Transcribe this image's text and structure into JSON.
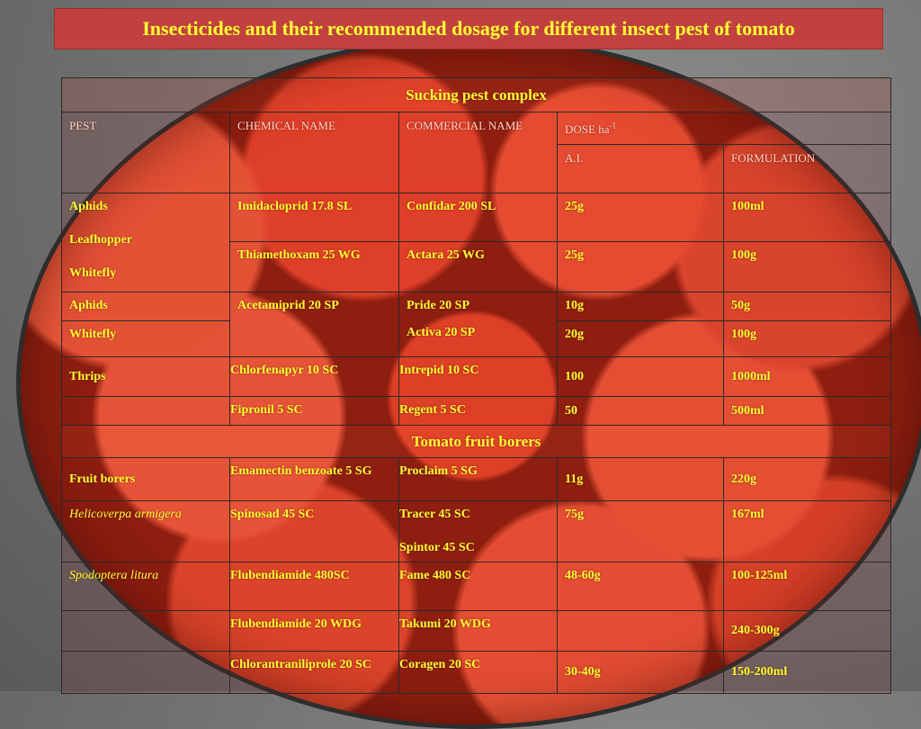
{
  "title": "Insecticides and their recommended dosage for different insect pest of tomato",
  "sections": {
    "sucking": "Sucking pest complex",
    "borers": "Tomato fruit borers"
  },
  "headers": {
    "pest": "PEST",
    "chemical": "CHEMICAL NAME",
    "commercial": "COMMERCIAL NAME",
    "dose": "DOSE ha",
    "dose_sup": "-1",
    "ai": "A.I.",
    "formulation": "FORMULATION"
  },
  "rows": {
    "r1": {
      "pest1": "Aphids",
      "pest2": "Leafhopper",
      "pest3": "Whitefly",
      "chem": "Imidacloprid 17.8 SL",
      "comm": "Confidar 200 SL",
      "ai": "25g",
      "form": "100ml"
    },
    "r2": {
      "chem": "Thiamethoxam 25 WG",
      "comm": "Actara 25 WG",
      "ai": "25g",
      "form": "100g"
    },
    "r3": {
      "pest": "Aphids",
      "chem": "Acetamiprid 20 SP",
      "comm1": "Pride 20 SP",
      "comm2": "Activa 20 SP",
      "ai": "10g",
      "form": "50g"
    },
    "r4": {
      "pest": "Whitefly",
      "ai": "20g",
      "form": "100g"
    },
    "r5": {
      "pest": "Thrips",
      "chem": "Chlorfenapyr 10 SC",
      "comm": "Intrepid 10 SC",
      "ai": "100",
      "form": "1000ml"
    },
    "r6": {
      "chem": "Fipronil 5 SC",
      "comm": "Regent 5 SC",
      "ai": "50",
      "form": "500ml"
    },
    "r7": {
      "pest": "Fruit borers",
      "chem": "Emamectin benzoate 5 SG",
      "comm": "Proclaim 5 SG",
      "ai": "11g",
      "form": "220g"
    },
    "r8": {
      "pest": "Helicoverpa armigera",
      "chem": "Spinosad 45 SC",
      "comm1": "Tracer 45 SC",
      "comm2": "Spintor 45 SC",
      "ai": "75g",
      "form": "167ml"
    },
    "r9": {
      "pest": "Spodoptera litura",
      "chem": "Flubendiamide 480SC",
      "comm": "Fame 480 SC",
      "ai": "48-60g",
      "form": "100-125ml"
    },
    "r10": {
      "chem": "Flubendiamide 20 WDG",
      "comm": "Takumi 20 WDG",
      "ai": "",
      "form": "240-300g"
    },
    "r11": {
      "chem": "Chlorantraniliprole 20 SC",
      "comm": "Coragen 20 SC",
      "ai": "30-40g",
      "form": "150-200ml"
    }
  }
}
